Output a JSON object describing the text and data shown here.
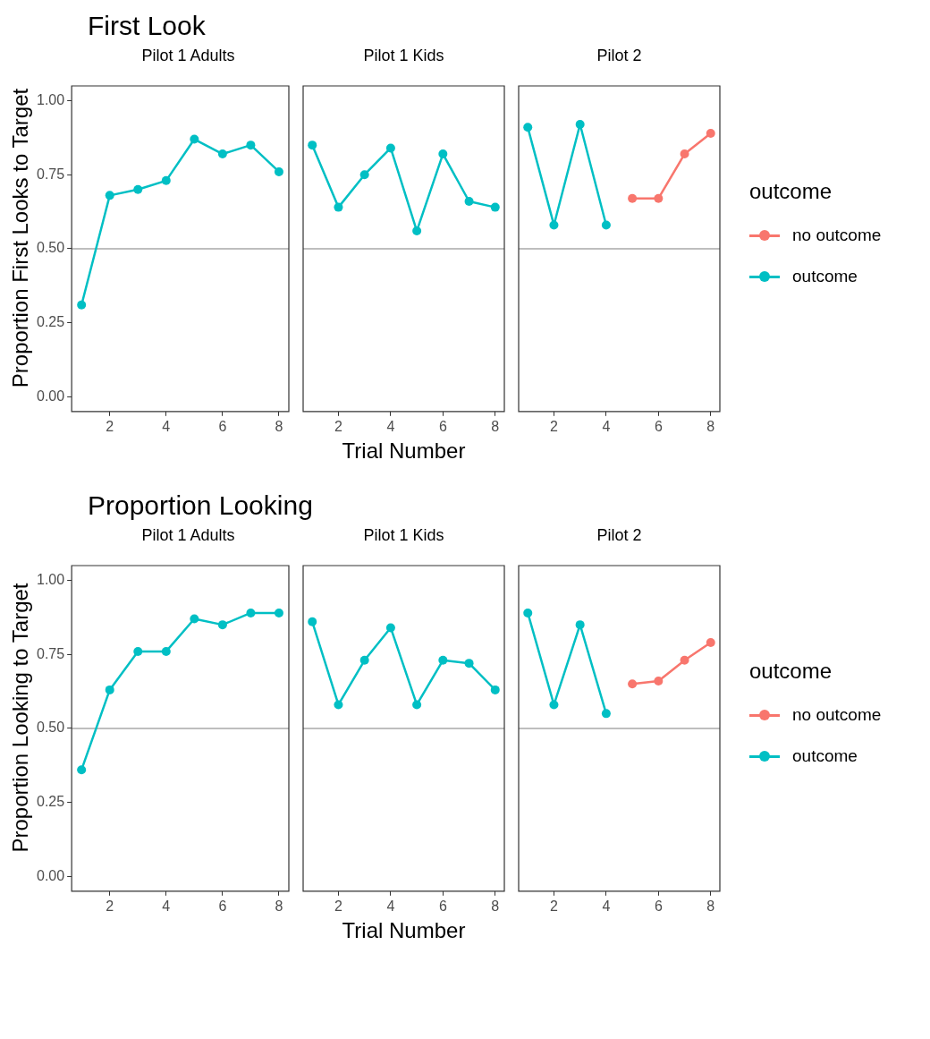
{
  "chart_data": [
    {
      "type": "line",
      "title": "First Look",
      "subtitle": "Pilot 1 Adults",
      "ylabel": "Proportion First Looks to Target",
      "xlim": [
        0.65,
        8.35
      ],
      "xticks": [
        2,
        4,
        6,
        8
      ],
      "ylim": [
        -0.05,
        1.05
      ],
      "yticks": [
        {
          "value": 0,
          "label": "0.00"
        },
        {
          "value": 0.25,
          "label": "0.25"
        },
        {
          "value": 0.5,
          "label": "0.50"
        },
        {
          "value": 0.75,
          "label": "0.75"
        },
        {
          "value": 1,
          "label": "1.00"
        }
      ],
      "grid": false,
      "legend": false,
      "marker": "circle",
      "ref_lines": [
        {
          "axis": "y",
          "value": 0.5,
          "color": "#bebebe"
        }
      ],
      "series": [
        {
          "color": "#00bfc4",
          "x": [
            1,
            2,
            3,
            4,
            5,
            6,
            7,
            8
          ],
          "values": [
            0.31,
            0.68,
            0.7,
            0.73,
            0.87,
            0.82,
            0.85,
            0.76
          ]
        }
      ]
    },
    {
      "type": "line",
      "subtitle": "Pilot 1 Kids",
      "xlabel": "Trial Number",
      "xlim": [
        0.65,
        8.35
      ],
      "xticks": [
        2,
        4,
        6,
        8
      ],
      "ylim": [
        -0.05,
        1.05
      ],
      "tick_labels": "x",
      "grid": false,
      "legend": false,
      "marker": "circle",
      "ref_lines": [
        {
          "axis": "y",
          "value": 0.5,
          "color": "#bebebe"
        }
      ],
      "series": [
        {
          "color": "#00bfc4",
          "x": [
            1,
            2,
            3,
            4,
            5,
            6,
            7,
            8
          ],
          "values": [
            0.85,
            0.64,
            0.75,
            0.84,
            0.56,
            0.82,
            0.66,
            0.64
          ]
        }
      ]
    },
    {
      "type": "line",
      "subtitle": "Pilot 2",
      "xlim": [
        0.65,
        8.35
      ],
      "xticks": [
        2,
        4,
        6,
        8
      ],
      "ylim": [
        -0.05,
        1.05
      ],
      "tick_labels": "x",
      "grid": false,
      "legend": "right",
      "legend_title": "outcome",
      "marker": "circle",
      "ref_lines": [
        {
          "axis": "y",
          "value": 0.5,
          "color": "#bebebe"
        }
      ],
      "series": [
        {
          "name": "no outcome",
          "color": "#f8766d",
          "x": [
            5,
            6,
            7,
            8
          ],
          "values": [
            0.67,
            0.67,
            0.82,
            0.89
          ]
        },
        {
          "name": "outcome",
          "color": "#00bfc4",
          "x": [
            1,
            2,
            3,
            4
          ],
          "values": [
            0.91,
            0.58,
            0.92,
            0.58
          ]
        }
      ]
    },
    {
      "type": "line",
      "title": "Proportion Looking",
      "subtitle": "Pilot 1 Adults",
      "ylabel": "Proportion Looking to Target",
      "xlim": [
        0.65,
        8.35
      ],
      "xticks": [
        2,
        4,
        6,
        8
      ],
      "ylim": [
        -0.05,
        1.05
      ],
      "yticks": [
        {
          "value": 0,
          "label": "0.00"
        },
        {
          "value": 0.25,
          "label": "0.25"
        },
        {
          "value": 0.5,
          "label": "0.50"
        },
        {
          "value": 0.75,
          "label": "0.75"
        },
        {
          "value": 1,
          "label": "1.00"
        }
      ],
      "grid": false,
      "legend": false,
      "marker": "circle",
      "ref_lines": [
        {
          "axis": "y",
          "value": 0.5,
          "color": "#bebebe"
        }
      ],
      "series": [
        {
          "color": "#00bfc4",
          "x": [
            1,
            2,
            3,
            4,
            5,
            6,
            7,
            8
          ],
          "values": [
            0.36,
            0.63,
            0.76,
            0.76,
            0.87,
            0.85,
            0.89,
            0.89
          ]
        }
      ]
    },
    {
      "type": "line",
      "subtitle": "Pilot 1 Kids",
      "xlabel": "Trial Number",
      "xlim": [
        0.65,
        8.35
      ],
      "xticks": [
        2,
        4,
        6,
        8
      ],
      "ylim": [
        -0.05,
        1.05
      ],
      "tick_labels": "x",
      "grid": false,
      "legend": false,
      "marker": "circle",
      "ref_lines": [
        {
          "axis": "y",
          "value": 0.5,
          "color": "#bebebe"
        }
      ],
      "series": [
        {
          "color": "#00bfc4",
          "x": [
            1,
            2,
            3,
            4,
            5,
            6,
            7,
            8
          ],
          "values": [
            0.86,
            0.58,
            0.73,
            0.84,
            0.58,
            0.73,
            0.72,
            0.63
          ]
        }
      ]
    },
    {
      "type": "line",
      "subtitle": "Pilot 2",
      "xlim": [
        0.65,
        8.35
      ],
      "xticks": [
        2,
        4,
        6,
        8
      ],
      "ylim": [
        -0.05,
        1.05
      ],
      "tick_labels": "x",
      "grid": false,
      "legend": "right",
      "legend_title": "outcome",
      "marker": "circle",
      "ref_lines": [
        {
          "axis": "y",
          "value": 0.5,
          "color": "#bebebe"
        }
      ],
      "series": [
        {
          "name": "no outcome",
          "color": "#f8766d",
          "x": [
            5,
            6,
            7,
            8
          ],
          "values": [
            0.65,
            0.66,
            0.73,
            0.79
          ]
        },
        {
          "name": "outcome",
          "color": "#00bfc4",
          "x": [
            1,
            2,
            3,
            4
          ],
          "values": [
            0.89,
            0.58,
            0.85,
            0.55
          ]
        }
      ]
    }
  ]
}
